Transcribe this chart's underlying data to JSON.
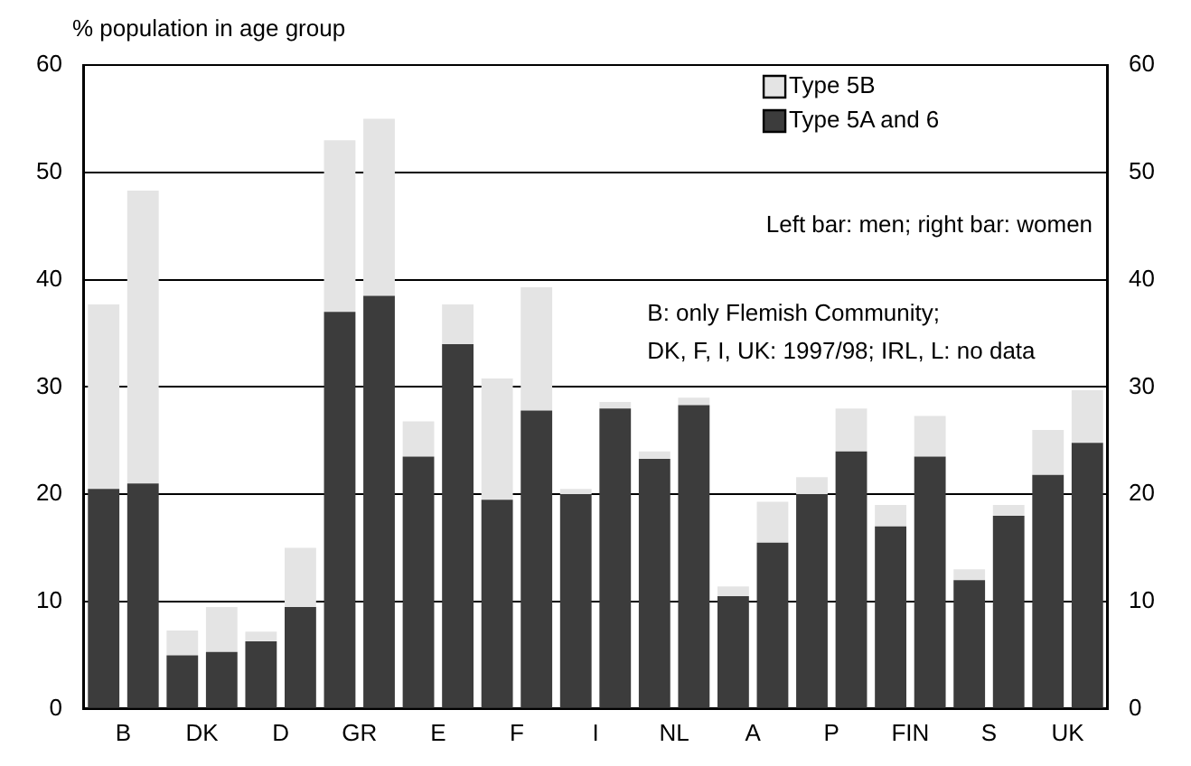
{
  "chart_data": {
    "type": "bar",
    "ylabel": "% population in age group",
    "categories": [
      "B",
      null,
      "DK",
      null,
      "D",
      null,
      "GR",
      null,
      "E",
      null,
      "F",
      null,
      "I",
      null,
      "NL",
      null,
      "A",
      null,
      "P",
      null,
      "FIN",
      null,
      "S",
      null,
      "UK",
      null
    ],
    "stacked": true,
    "series": [
      {
        "name": "Type 5A and 6",
        "color": "#3c3c3c",
        "values": [
          20.5,
          21,
          5,
          5.3,
          6.3,
          9.5,
          37,
          38.5,
          23.5,
          34,
          19.5,
          27.8,
          20,
          28,
          23.3,
          28.3,
          10.5,
          15.5,
          20,
          24,
          17,
          23.5,
          12,
          18,
          21.8,
          24.8
        ]
      },
      {
        "name": "Type 5B",
        "color": "#e4e4e4",
        "values": [
          17.2,
          27.3,
          2.3,
          4.2,
          0.9,
          5.5,
          16,
          16.5,
          3.3,
          3.7,
          11.3,
          11.5,
          0.5,
          0.6,
          0.7,
          0.7,
          0.9,
          3.8,
          1.6,
          4,
          2,
          3.8,
          1,
          1,
          4.2,
          4.9
        ]
      }
    ],
    "ylim": [
      0,
      60
    ],
    "yticks": [
      0,
      10,
      20,
      30,
      40,
      50,
      60
    ],
    "y2lim": [
      0,
      60
    ],
    "y2ticks": [
      0,
      10,
      20,
      30,
      40,
      50,
      60
    ],
    "grid": "y",
    "legend": "top right",
    "annotations": [
      "Left bar: men; right bar: women",
      "B: only Flemish Community;\nDK, F, I, UK: 1997/98; IRL, L: no data"
    ]
  }
}
